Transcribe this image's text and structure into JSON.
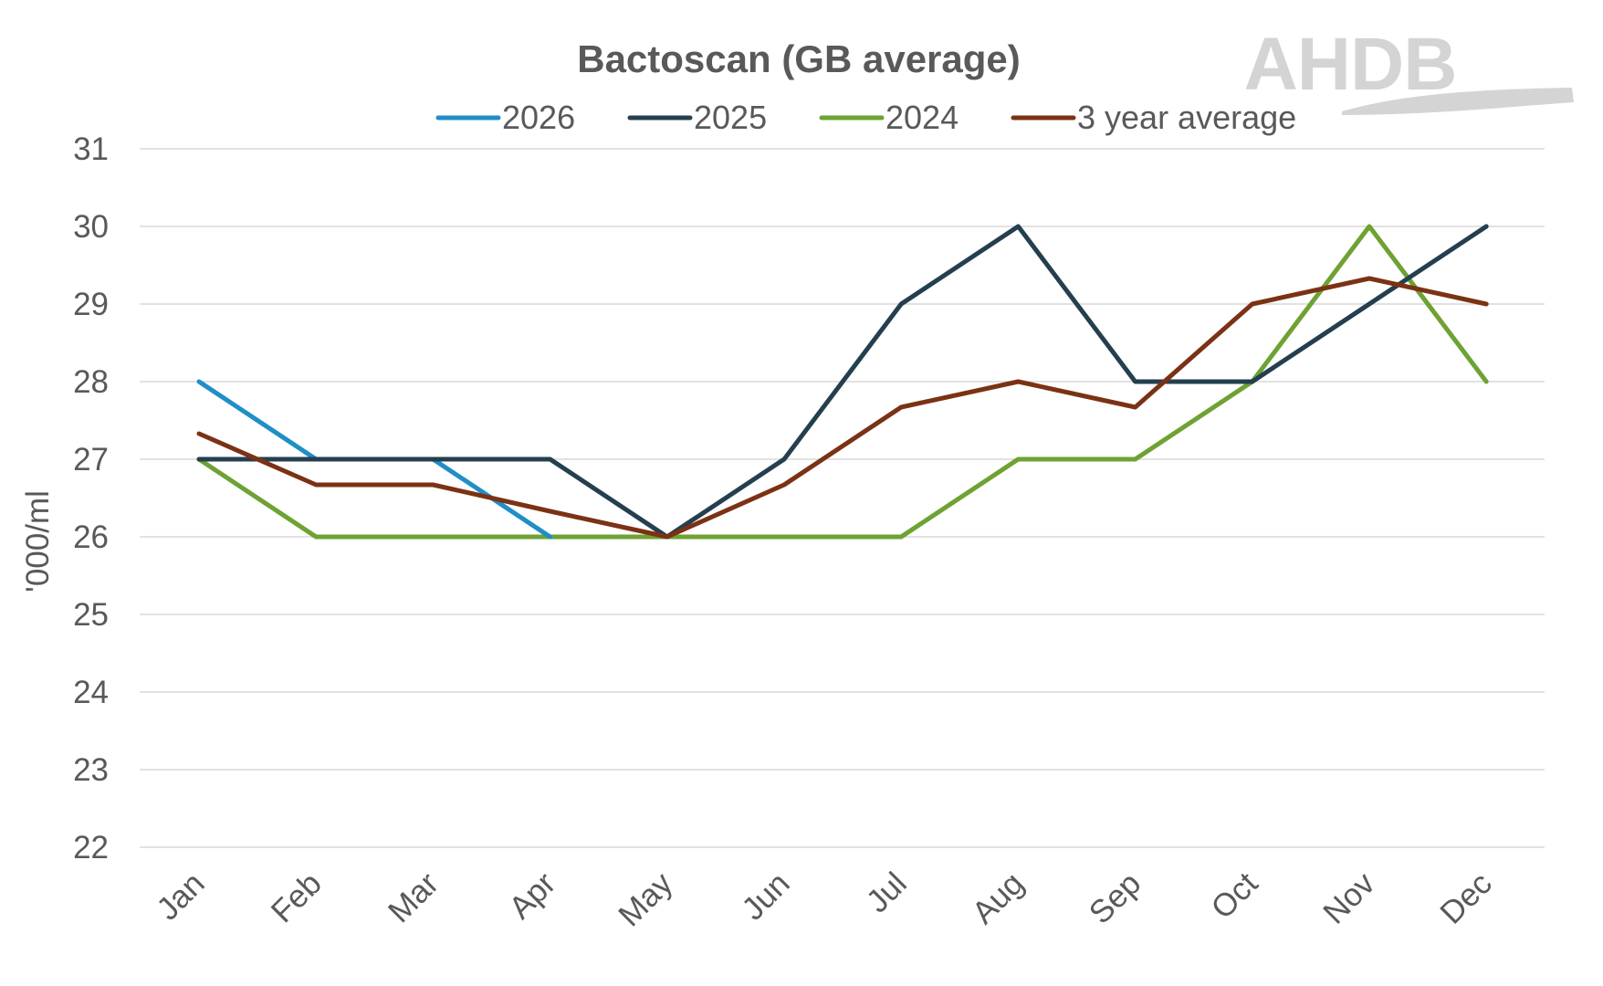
{
  "logo": {
    "text": "AHDB"
  },
  "chart_data": {
    "type": "line",
    "title": "Bactoscan (GB average)",
    "xlabel": "",
    "ylabel": "'000/ml",
    "ylim": [
      22,
      31
    ],
    "yticks": [
      22,
      23,
      24,
      25,
      26,
      27,
      28,
      29,
      30,
      31
    ],
    "grid": true,
    "legend_position": "top",
    "categories": [
      "Jan",
      "Feb",
      "Mar",
      "Apr",
      "May",
      "Jun",
      "Jul",
      "Aug",
      "Sep",
      "Oct",
      "Nov",
      "Dec"
    ],
    "series": [
      {
        "name": "2026",
        "color": "#1f8fc6",
        "values": [
          28,
          27,
          27,
          26,
          null,
          null,
          null,
          null,
          null,
          null,
          null,
          null
        ]
      },
      {
        "name": "2025",
        "color": "#243f4f",
        "values": [
          27,
          27,
          27,
          27,
          26,
          27,
          29,
          30,
          28,
          28,
          29,
          30
        ]
      },
      {
        "name": "2024",
        "color": "#6ea233",
        "values": [
          27,
          26,
          26,
          26,
          26,
          26,
          26,
          27,
          27,
          28,
          30,
          28
        ]
      },
      {
        "name": "3 year average",
        "color": "#7b3214",
        "values": [
          27.33,
          26.67,
          26.67,
          26.33,
          26,
          26.67,
          27.67,
          28,
          27.67,
          29,
          29.33,
          29
        ]
      }
    ]
  }
}
